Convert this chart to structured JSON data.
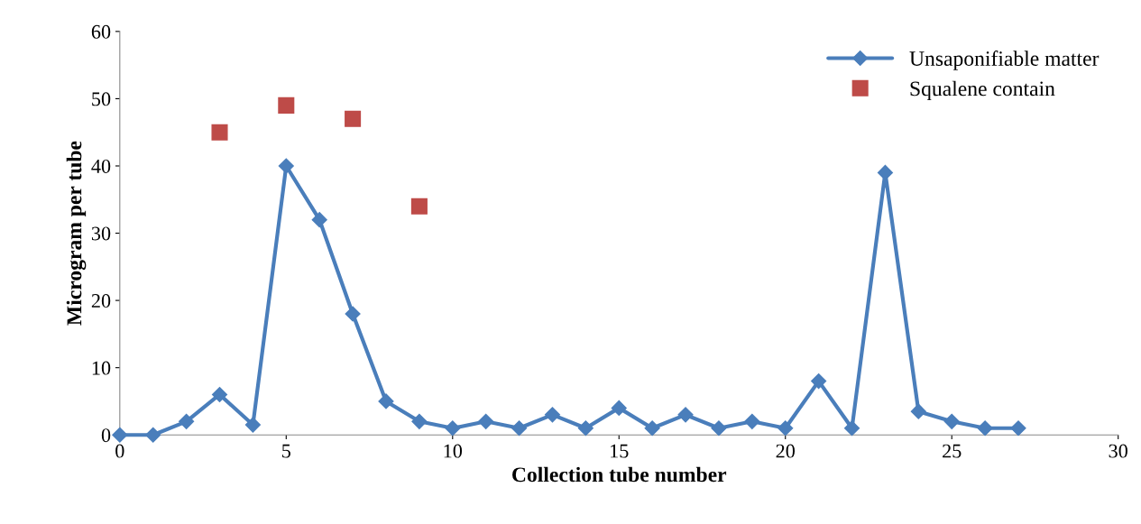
{
  "chart_data": {
    "type": "line",
    "xlabel": "Collection tube number",
    "ylabel": "Microgram per tube",
    "xlim": [
      0,
      30
    ],
    "xticks": [
      0,
      5,
      10,
      15,
      20,
      25,
      30
    ],
    "ylim": [
      0,
      60
    ],
    "yticks": [
      0,
      10,
      20,
      30,
      40,
      50,
      60
    ],
    "grid": false,
    "legend": "top right",
    "series": [
      {
        "name": "Unsaponifiable matter",
        "marker": "diamond",
        "color": "#4a7ebb",
        "x": [
          0,
          1,
          2,
          3,
          4,
          5,
          6,
          7,
          8,
          9,
          10,
          11,
          12,
          13,
          14,
          15,
          16,
          17,
          18,
          19,
          20,
          21,
          22,
          23,
          24,
          25,
          26,
          27
        ],
        "values": [
          0,
          0,
          2,
          6,
          1.5,
          40,
          32,
          18,
          5,
          2,
          1,
          2,
          1,
          3,
          1,
          4,
          1,
          3,
          1,
          2,
          1,
          8,
          1,
          39,
          3.5,
          2,
          1,
          1
        ]
      },
      {
        "name": "Squalene contain",
        "type": "scatter",
        "marker": "square",
        "color": "#be4b48",
        "x": [
          3,
          5,
          7,
          9
        ],
        "values": [
          45,
          49,
          47,
          34
        ]
      }
    ]
  }
}
